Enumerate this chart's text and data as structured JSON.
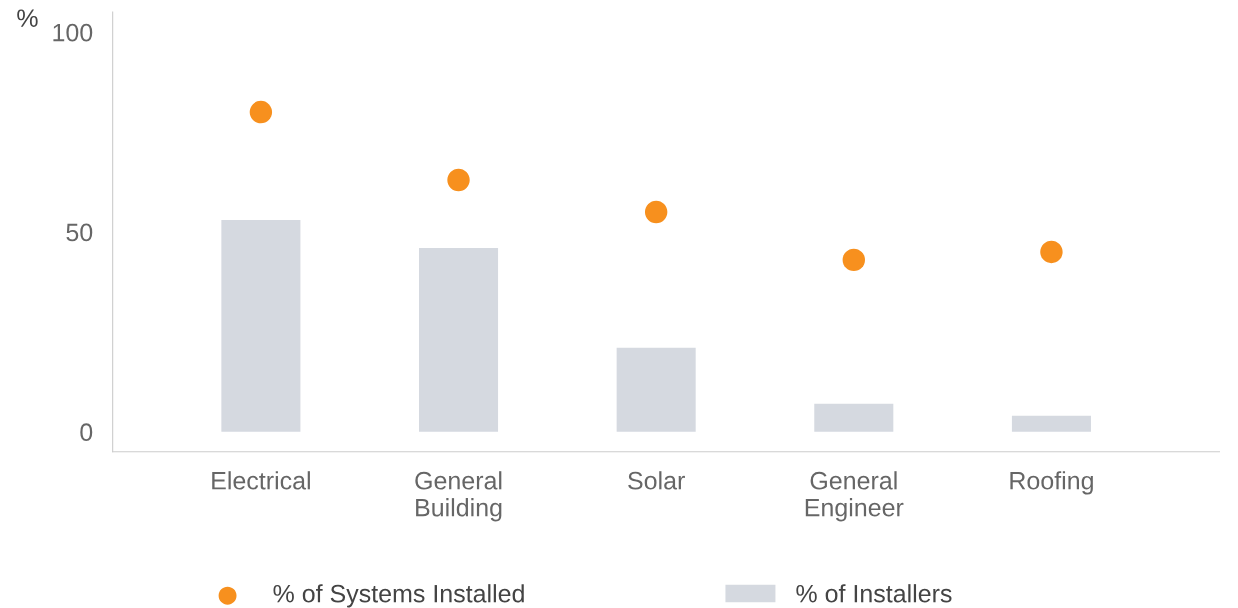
{
  "chart_data": {
    "type": "bar",
    "ylabel": "%",
    "categories": [
      "Electrical",
      "General\nBuilding",
      "Solar",
      "General\nEngineer",
      "Roofing"
    ],
    "series": [
      {
        "name": "% of Systems Installed",
        "type": "scatter",
        "color": "#f7901e",
        "values": [
          80,
          63,
          55,
          43,
          45
        ]
      },
      {
        "name": "% of Installers",
        "color": "#d5d9e0",
        "values": [
          53,
          46,
          21,
          7,
          4
        ]
      }
    ],
    "ylim": [
      -5,
      105
    ],
    "yticks": [
      0,
      50,
      100
    ],
    "grid": false,
    "legend": "bottom",
    "marker": "circle"
  }
}
